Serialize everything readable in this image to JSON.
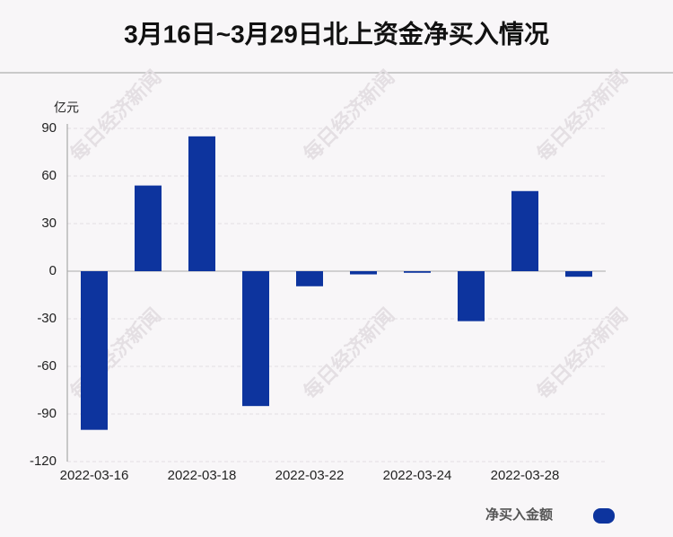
{
  "chart_data": {
    "type": "bar",
    "title": "3月16日~3月29日北上资金净买入情况",
    "y_unit": "亿元",
    "watermark": "每日经济新闻",
    "categories": [
      "2022-03-16",
      null,
      "2022-03-18",
      null,
      "2022-03-22",
      null,
      "2022-03-24",
      null,
      "2022-03-28",
      null
    ],
    "series": [
      {
        "name": "净买入金额",
        "color": "#0d349e",
        "values": [
          -100,
          54,
          85,
          -85,
          -9.5,
          -2,
          -1,
          -31.5,
          50.5,
          -3.5
        ]
      }
    ],
    "ylim": [
      -120,
      90
    ],
    "yticks": [
      -120,
      -90,
      -60,
      -30,
      0,
      30,
      60,
      90
    ],
    "grid": true
  }
}
